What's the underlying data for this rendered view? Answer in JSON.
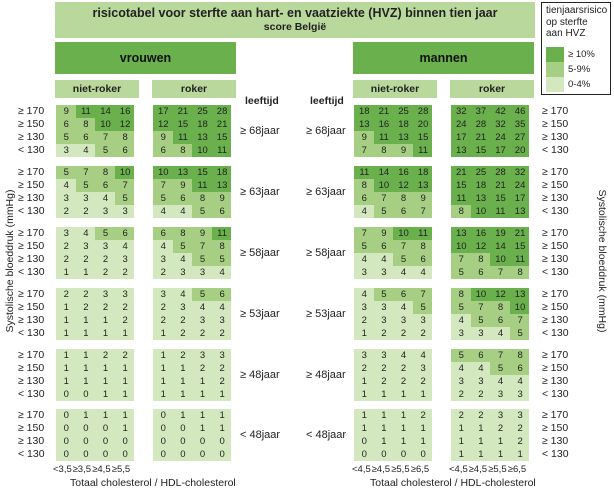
{
  "title": "risicotabel voor sterfte aan hart- en vaatziekte (HVZ) binnen tien jaar",
  "subtitle": "score België",
  "legend": {
    "title_lines": [
      "tienjaarsrisico",
      "op sterfte",
      "aan HVZ"
    ],
    "items": [
      {
        "label": "≥ 10%",
        "color": "#6ab04c"
      },
      {
        "label": "5-9%",
        "color": "#a6cf84"
      },
      {
        "label": "0-4%",
        "color": "#d4e8bf"
      }
    ]
  },
  "colors": {
    "high": "#6ab04c",
    "mid": "#a6cf84",
    "low": "#d4e8bf",
    "header": "#b9d89c"
  },
  "sex_headers": {
    "women": "vrouwen",
    "men": "mannen"
  },
  "smoker_headers": {
    "non": "niet-roker",
    "smoker": "roker"
  },
  "age_column_title": "leeftijd",
  "age_groups": [
    "≥ 68jaar",
    "≥ 63jaar",
    "≥ 58jaar",
    "≥ 53jaar",
    "≥ 48jaar",
    "< 48jaar"
  ],
  "sbp_labels": [
    "≥ 170",
    "≥ 150",
    "≥ 130",
    "< 130"
  ],
  "y_axis_title": "Systolische bloeddruk (mmHg)",
  "x_axis_title": "Totaal cholesterol / HDL-cholesterol",
  "x_ticks_women": [
    "<3,5",
    "≥3,5",
    "≥4,5",
    "≥5,5"
  ],
  "x_ticks_men": [
    "<4,5",
    "≥4,5",
    "≥5,5",
    "≥6,5"
  ],
  "chart_data": {
    "type": "table",
    "title": "risicotabel voor sterfte aan hart- en vaatziekte (HVZ) binnen tien jaar",
    "subtitle": "score België",
    "rows": "age group × systolic blood pressure (≥170, ≥150, ≥130, <130)",
    "columns": "cholesterol ratio categories",
    "women_nonsmoker": [
      [
        [
          9,
          11,
          14,
          16
        ],
        [
          6,
          8,
          10,
          12
        ],
        [
          5,
          6,
          7,
          8
        ],
        [
          3,
          4,
          5,
          6
        ]
      ],
      [
        [
          5,
          7,
          8,
          10
        ],
        [
          4,
          5,
          6,
          7
        ],
        [
          3,
          3,
          4,
          5
        ],
        [
          2,
          2,
          3,
          3
        ]
      ],
      [
        [
          3,
          4,
          5,
          6
        ],
        [
          2,
          3,
          3,
          4
        ],
        [
          2,
          2,
          2,
          3
        ],
        [
          1,
          1,
          2,
          2
        ]
      ],
      [
        [
          2,
          2,
          3,
          3
        ],
        [
          1,
          2,
          2,
          2
        ],
        [
          1,
          1,
          1,
          2
        ],
        [
          1,
          1,
          1,
          1
        ]
      ],
      [
        [
          1,
          1,
          2,
          2
        ],
        [
          1,
          1,
          1,
          1
        ],
        [
          1,
          1,
          1,
          1
        ],
        [
          0,
          0,
          1,
          1
        ]
      ],
      [
        [
          0,
          1,
          1,
          1
        ],
        [
          0,
          0,
          0,
          1
        ],
        [
          0,
          0,
          0,
          0
        ],
        [
          0,
          0,
          0,
          0
        ]
      ]
    ],
    "women_smoker": [
      [
        [
          17,
          21,
          25,
          28
        ],
        [
          12,
          15,
          18,
          21
        ],
        [
          9,
          11,
          13,
          15
        ],
        [
          6,
          8,
          10,
          11
        ]
      ],
      [
        [
          10,
          13,
          15,
          18
        ],
        [
          7,
          9,
          11,
          13
        ],
        [
          5,
          6,
          8,
          9
        ],
        [
          4,
          4,
          5,
          6
        ]
      ],
      [
        [
          6,
          8,
          9,
          11
        ],
        [
          4,
          5,
          7,
          8
        ],
        [
          3,
          4,
          5,
          5
        ],
        [
          2,
          3,
          3,
          4
        ]
      ],
      [
        [
          3,
          4,
          5,
          6
        ],
        [
          2,
          3,
          4,
          4
        ],
        [
          2,
          2,
          3,
          3
        ],
        [
          1,
          2,
          2,
          2
        ]
      ],
      [
        [
          1,
          2,
          3,
          3
        ],
        [
          1,
          1,
          2,
          2
        ],
        [
          1,
          1,
          1,
          2
        ],
        [
          1,
          1,
          1,
          1
        ]
      ],
      [
        [
          0,
          1,
          1,
          1
        ],
        [
          0,
          0,
          1,
          1
        ],
        [
          0,
          0,
          0,
          0
        ],
        [
          0,
          0,
          0,
          0
        ]
      ]
    ],
    "men_nonsmoker": [
      [
        [
          18,
          21,
          25,
          28
        ],
        [
          13,
          16,
          18,
          20
        ],
        [
          9,
          11,
          13,
          15
        ],
        [
          7,
          8,
          9,
          11
        ]
      ],
      [
        [
          11,
          14,
          16,
          18
        ],
        [
          8,
          10,
          12,
          13
        ],
        [
          6,
          7,
          8,
          9
        ],
        [
          4,
          5,
          6,
          7
        ]
      ],
      [
        [
          7,
          9,
          10,
          11
        ],
        [
          5,
          6,
          7,
          8
        ],
        [
          4,
          4,
          5,
          6
        ],
        [
          3,
          3,
          4,
          4
        ]
      ],
      [
        [
          4,
          5,
          6,
          7
        ],
        [
          3,
          3,
          4,
          5
        ],
        [
          2,
          3,
          3,
          3
        ],
        [
          1,
          2,
          2,
          2
        ]
      ],
      [
        [
          3,
          3,
          4,
          4
        ],
        [
          2,
          2,
          2,
          3
        ],
        [
          1,
          2,
          2,
          2
        ],
        [
          1,
          1,
          1,
          1
        ]
      ],
      [
        [
          1,
          1,
          1,
          2
        ],
        [
          1,
          1,
          1,
          1
        ],
        [
          0,
          1,
          1,
          1
        ],
        [
          0,
          0,
          0,
          0
        ]
      ]
    ],
    "men_smoker": [
      [
        [
          32,
          37,
          42,
          46
        ],
        [
          24,
          28,
          32,
          35
        ],
        [
          17,
          21,
          24,
          27
        ],
        [
          13,
          15,
          17,
          20
        ]
      ],
      [
        [
          21,
          25,
          28,
          32
        ],
        [
          15,
          18,
          21,
          24
        ],
        [
          11,
          13,
          15,
          17
        ],
        [
          8,
          10,
          11,
          13
        ]
      ],
      [
        [
          13,
          16,
          19,
          21
        ],
        [
          10,
          12,
          14,
          15
        ],
        [
          7,
          8,
          10,
          11
        ],
        [
          5,
          6,
          7,
          8
        ]
      ],
      [
        [
          8,
          10,
          12,
          13
        ],
        [
          5,
          7,
          8,
          10
        ],
        [
          4,
          5,
          6,
          7
        ],
        [
          3,
          3,
          4,
          5
        ]
      ],
      [
        [
          5,
          6,
          7,
          8
        ],
        [
          4,
          4,
          5,
          6
        ],
        [
          3,
          3,
          4,
          4
        ],
        [
          2,
          2,
          3,
          3
        ]
      ],
      [
        [
          2,
          2,
          3,
          3
        ],
        [
          1,
          1,
          2,
          2
        ],
        [
          1,
          1,
          1,
          2
        ],
        [
          1,
          1,
          1,
          1
        ]
      ]
    ]
  }
}
